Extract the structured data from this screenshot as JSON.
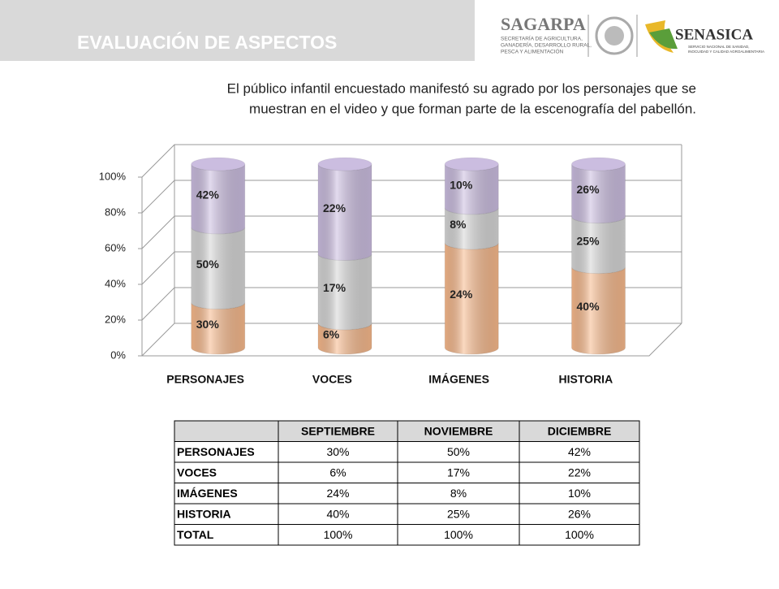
{
  "header": {
    "title": "EVALUACIÓN DE ASPECTOS",
    "subtitle_lines": [
      "El público infantil encuestado manifestó su agrado por los personajes que se",
      "muestran en el video y que forman parte de la escenografía del pabellón."
    ],
    "logos": {
      "sagarpa": "SAGARPA",
      "sagarpa_lines": [
        "SECRETARÍA DE AGRICULTURA,",
        "GANADERÍA, DESARROLLO RURAL,",
        "PESCA Y ALIMENTACIÓN"
      ],
      "senasica": "SENASICA",
      "senasica_lines": [
        "SERVICIO NACIONAL DE SANIDAD,",
        "INOCUIDAD Y CALIDAD AGROALIMENTARIA"
      ]
    }
  },
  "chart_data": {
    "type": "bar",
    "stacking": "percent",
    "categories": [
      "PERSONAJES",
      "VOCES",
      "IMÁGENES",
      "HISTORIA"
    ],
    "series": [
      {
        "name": "SEPTIEMBRE",
        "color": "#f7b98c",
        "values": [
          30,
          6,
          24,
          40
        ],
        "value_labels": [
          "30%",
          "6%",
          "24%",
          "40%"
        ]
      },
      {
        "name": "NOVIEMBRE",
        "color": "#d6d6d6",
        "values": [
          50,
          17,
          8,
          25
        ],
        "value_labels": [
          "50%",
          "17%",
          "8%",
          "25%"
        ]
      },
      {
        "name": "DICIEMBRE",
        "color": "#cbbde0",
        "values": [
          42,
          22,
          10,
          26
        ],
        "value_labels": [
          "42%",
          "22%",
          "10%",
          "26%"
        ]
      }
    ],
    "ylim": [
      0,
      100
    ],
    "yticks": [
      {
        "value": 0,
        "label": "0%"
      },
      {
        "value": 20,
        "label": "20%"
      },
      {
        "value": 40,
        "label": "40%"
      },
      {
        "value": 60,
        "label": "60%"
      },
      {
        "value": 80,
        "label": "80%"
      },
      {
        "value": 100,
        "label": "100%"
      }
    ],
    "grid": true
  },
  "table": {
    "columns": [
      "SEPTIEMBRE",
      "NOVIEMBRE",
      "DICIEMBRE"
    ],
    "rows": [
      {
        "label": "PERSONAJES",
        "cells": [
          "30%",
          "50%",
          "42%"
        ]
      },
      {
        "label": "VOCES",
        "cells": [
          "6%",
          "17%",
          "22%"
        ]
      },
      {
        "label": "IMÁGENES",
        "cells": [
          "24%",
          "8%",
          "10%"
        ]
      },
      {
        "label": "HISTORIA",
        "cells": [
          "40%",
          "25%",
          "26%"
        ]
      },
      {
        "label": "TOTAL",
        "cells": [
          "100%",
          "100%",
          "100%"
        ]
      }
    ]
  }
}
